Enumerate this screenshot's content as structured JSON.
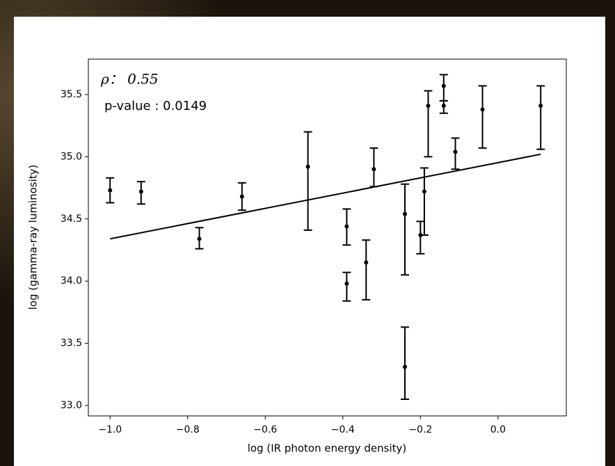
{
  "chart_data": {
    "type": "scatter",
    "xlabel": "log (IR photon energy density)",
    "ylabel": "log (gamma-ray luminosity)",
    "annotations": [
      "ρ： 0.55",
      "p-value : 0.0149"
    ],
    "series": [
      {
        "color": "#000000",
        "x": [
          -1.0,
          -0.92,
          -0.77,
          -0.66,
          -0.49,
          -0.39,
          -0.39,
          -0.34,
          -0.32,
          -0.24,
          -0.24,
          -0.2,
          -0.19,
          -0.18,
          -0.14,
          -0.14,
          -0.11,
          -0.04,
          0.11
        ],
        "values": [
          34.73,
          34.72,
          34.34,
          34.68,
          34.92,
          34.44,
          33.98,
          34.15,
          34.9,
          34.54,
          33.31,
          34.37,
          34.72,
          35.41,
          35.57,
          35.41,
          35.04,
          35.38,
          35.41
        ],
        "err_minus": [
          0.1,
          0.1,
          0.08,
          0.11,
          0.51,
          0.15,
          0.14,
          0.3,
          0.14,
          0.49,
          0.26,
          0.15,
          0.35,
          0.41,
          0.12,
          0.06,
          0.14,
          0.31,
          0.35
        ],
        "err_plus": [
          0.1,
          0.08,
          0.09,
          0.11,
          0.28,
          0.14,
          0.09,
          0.18,
          0.17,
          0.24,
          0.32,
          0.11,
          0.19,
          0.12,
          0.09,
          0.04,
          0.11,
          0.19,
          0.16
        ]
      }
    ],
    "fit": {
      "color": "#000000",
      "x": [
        -1.0,
        0.11
      ],
      "values": [
        34.34,
        35.02
      ]
    },
    "xlim": [
      -1.056,
      0.176
    ],
    "ylim": [
      32.916,
      35.785
    ],
    "xticks": [
      {
        "value": -1.0,
        "label": "−1.0"
      },
      {
        "value": -0.8,
        "label": "−0.8"
      },
      {
        "value": -0.6,
        "label": "−0.6"
      },
      {
        "value": -0.4,
        "label": "−0.4"
      },
      {
        "value": -0.2,
        "label": "−0.2"
      },
      {
        "value": 0.0,
        "label": "0.0"
      }
    ],
    "yticks": [
      {
        "value": 33.0,
        "label": "33.0"
      },
      {
        "value": 33.5,
        "label": "33.5"
      },
      {
        "value": 34.0,
        "label": "34.0"
      },
      {
        "value": 34.5,
        "label": "34.5"
      },
      {
        "value": 35.0,
        "label": "35.0"
      },
      {
        "value": 35.5,
        "label": "35.5"
      }
    ]
  }
}
